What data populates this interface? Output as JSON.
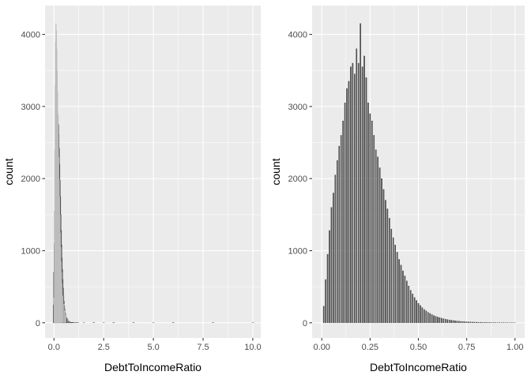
{
  "chart_data": [
    {
      "type": "bar",
      "subtype": "histogram",
      "xlabel": "DebtToIncomeRatio",
      "ylabel": "count",
      "xlim": [
        -0.45,
        10.4
      ],
      "ylim": [
        -210,
        4400
      ],
      "x_ticks": [
        0.0,
        2.5,
        5.0,
        7.5,
        10.0
      ],
      "x_tick_labels": [
        "0.0",
        "2.5",
        "5.0",
        "7.5",
        "10.0"
      ],
      "y_ticks": [
        0,
        1000,
        2000,
        3000,
        4000
      ],
      "y_tick_labels": [
        "0",
        "1000",
        "2000",
        "3000",
        "4000"
      ],
      "grid": true,
      "series": [
        {
          "x": [
            0.0,
            0.02,
            0.04,
            0.06,
            0.08,
            0.1,
            0.12,
            0.14,
            0.16,
            0.18,
            0.2,
            0.22,
            0.24,
            0.26,
            0.28,
            0.3,
            0.32,
            0.34,
            0.36,
            0.38,
            0.4,
            0.42,
            0.44,
            0.46,
            0.48,
            0.5,
            0.52,
            0.54,
            0.56,
            0.58,
            0.6,
            0.62,
            0.64,
            0.66,
            0.68,
            0.7,
            0.72,
            0.74,
            0.76,
            0.78,
            0.8,
            0.85,
            0.9,
            0.95,
            1.0,
            1.1,
            1.2,
            1.5,
            2.0,
            2.5,
            3.0,
            4.0,
            5.0,
            6.0,
            8.0,
            10.0
          ],
          "values": [
            250,
            700,
            1100,
            1550,
            1950,
            2300,
            2600,
            2800,
            2880,
            2860,
            2750,
            2600,
            2420,
            2200,
            1980,
            1750,
            1500,
            1280,
            1080,
            900,
            740,
            600,
            480,
            380,
            300,
            240,
            190,
            150,
            120,
            95,
            75,
            60,
            48,
            38,
            30,
            24,
            19,
            15,
            12,
            10,
            8,
            6,
            5,
            4,
            3,
            2,
            2,
            1,
            1,
            1,
            1,
            1,
            1,
            1,
            1,
            1
          ]
        },
        {
          "x": [
            0.0,
            0.02,
            0.04,
            0.06,
            0.08,
            0.1,
            0.12,
            0.14,
            0.16,
            0.18,
            0.2,
            0.22,
            0.24,
            0.26,
            0.28,
            0.3,
            0.32,
            0.34,
            0.36,
            0.38,
            0.4,
            0.45,
            0.5,
            0.55,
            0.6,
            0.7,
            0.8,
            1.0,
            1.5,
            2.5,
            5.0,
            10.0
          ],
          "values": [
            350,
            1200,
            2400,
            3300,
            3900,
            4150,
            4050,
            3800,
            3500,
            3200,
            2900,
            2600,
            2300,
            2000,
            1750,
            1500,
            1250,
            1050,
            850,
            700,
            550,
            380,
            260,
            170,
            110,
            60,
            30,
            15,
            8,
            5,
            3,
            2
          ]
        }
      ]
    },
    {
      "type": "bar",
      "subtype": "histogram",
      "xlabel": "DebtToIncomeRatio",
      "ylabel": "count",
      "xlim": [
        -0.05,
        1.05
      ],
      "ylim": [
        -210,
        4400
      ],
      "x_ticks": [
        0.0,
        0.25,
        0.5,
        0.75,
        1.0
      ],
      "x_tick_labels": [
        "0.00",
        "0.25",
        "0.50",
        "0.75",
        "1.00"
      ],
      "y_ticks": [
        0,
        1000,
        2000,
        3000,
        4000
      ],
      "y_tick_labels": [
        "0",
        "1000",
        "2000",
        "3000",
        "4000"
      ],
      "grid": true,
      "series": [
        {
          "x": [
            0.01,
            0.02,
            0.03,
            0.04,
            0.05,
            0.06,
            0.07,
            0.08,
            0.09,
            0.1,
            0.11,
            0.12,
            0.13,
            0.14,
            0.15,
            0.16,
            0.17,
            0.18,
            0.19,
            0.2,
            0.21,
            0.22,
            0.23,
            0.24,
            0.25,
            0.26,
            0.27,
            0.28,
            0.29,
            0.3,
            0.31,
            0.32,
            0.33,
            0.34,
            0.35,
            0.36,
            0.37,
            0.38,
            0.39,
            0.4,
            0.41,
            0.42,
            0.43,
            0.44,
            0.45,
            0.46,
            0.47,
            0.48,
            0.49,
            0.5,
            0.51,
            0.52,
            0.53,
            0.54,
            0.55,
            0.56,
            0.57,
            0.58,
            0.59,
            0.6,
            0.61,
            0.62,
            0.63,
            0.64,
            0.65,
            0.66,
            0.67,
            0.68,
            0.69,
            0.7,
            0.71,
            0.72,
            0.73,
            0.74,
            0.75,
            0.76,
            0.77,
            0.78,
            0.79,
            0.8,
            0.81,
            0.82,
            0.83,
            0.84,
            0.85,
            0.86,
            0.87,
            0.88,
            0.89,
            0.9,
            0.91,
            0.92,
            0.93,
            0.94,
            0.95,
            0.96,
            0.97,
            0.98,
            0.99,
            1.0
          ],
          "values": [
            230,
            600,
            950,
            1280,
            1600,
            1800,
            2050,
            2250,
            2450,
            2600,
            2800,
            3050,
            3250,
            3350,
            3550,
            3600,
            3450,
            3800,
            3600,
            4150,
            3550,
            3700,
            3400,
            3050,
            2900,
            2800,
            2600,
            2400,
            2300,
            2150,
            2000,
            1850,
            1700,
            1580,
            1450,
            1300,
            1180,
            1080,
            980,
            880,
            800,
            720,
            650,
            580,
            510,
            450,
            400,
            350,
            310,
            270,
            240,
            210,
            185,
            165,
            145,
            130,
            115,
            100,
            90,
            80,
            72,
            64,
            57,
            50,
            45,
            40,
            36,
            32,
            28,
            25,
            22,
            20,
            18,
            16,
            14,
            12,
            11,
            10,
            9,
            8,
            7,
            6,
            6,
            5,
            5,
            4,
            4,
            3,
            3,
            3,
            2,
            2,
            2,
            2,
            2,
            1,
            1,
            1,
            1,
            1
          ]
        }
      ]
    }
  ]
}
